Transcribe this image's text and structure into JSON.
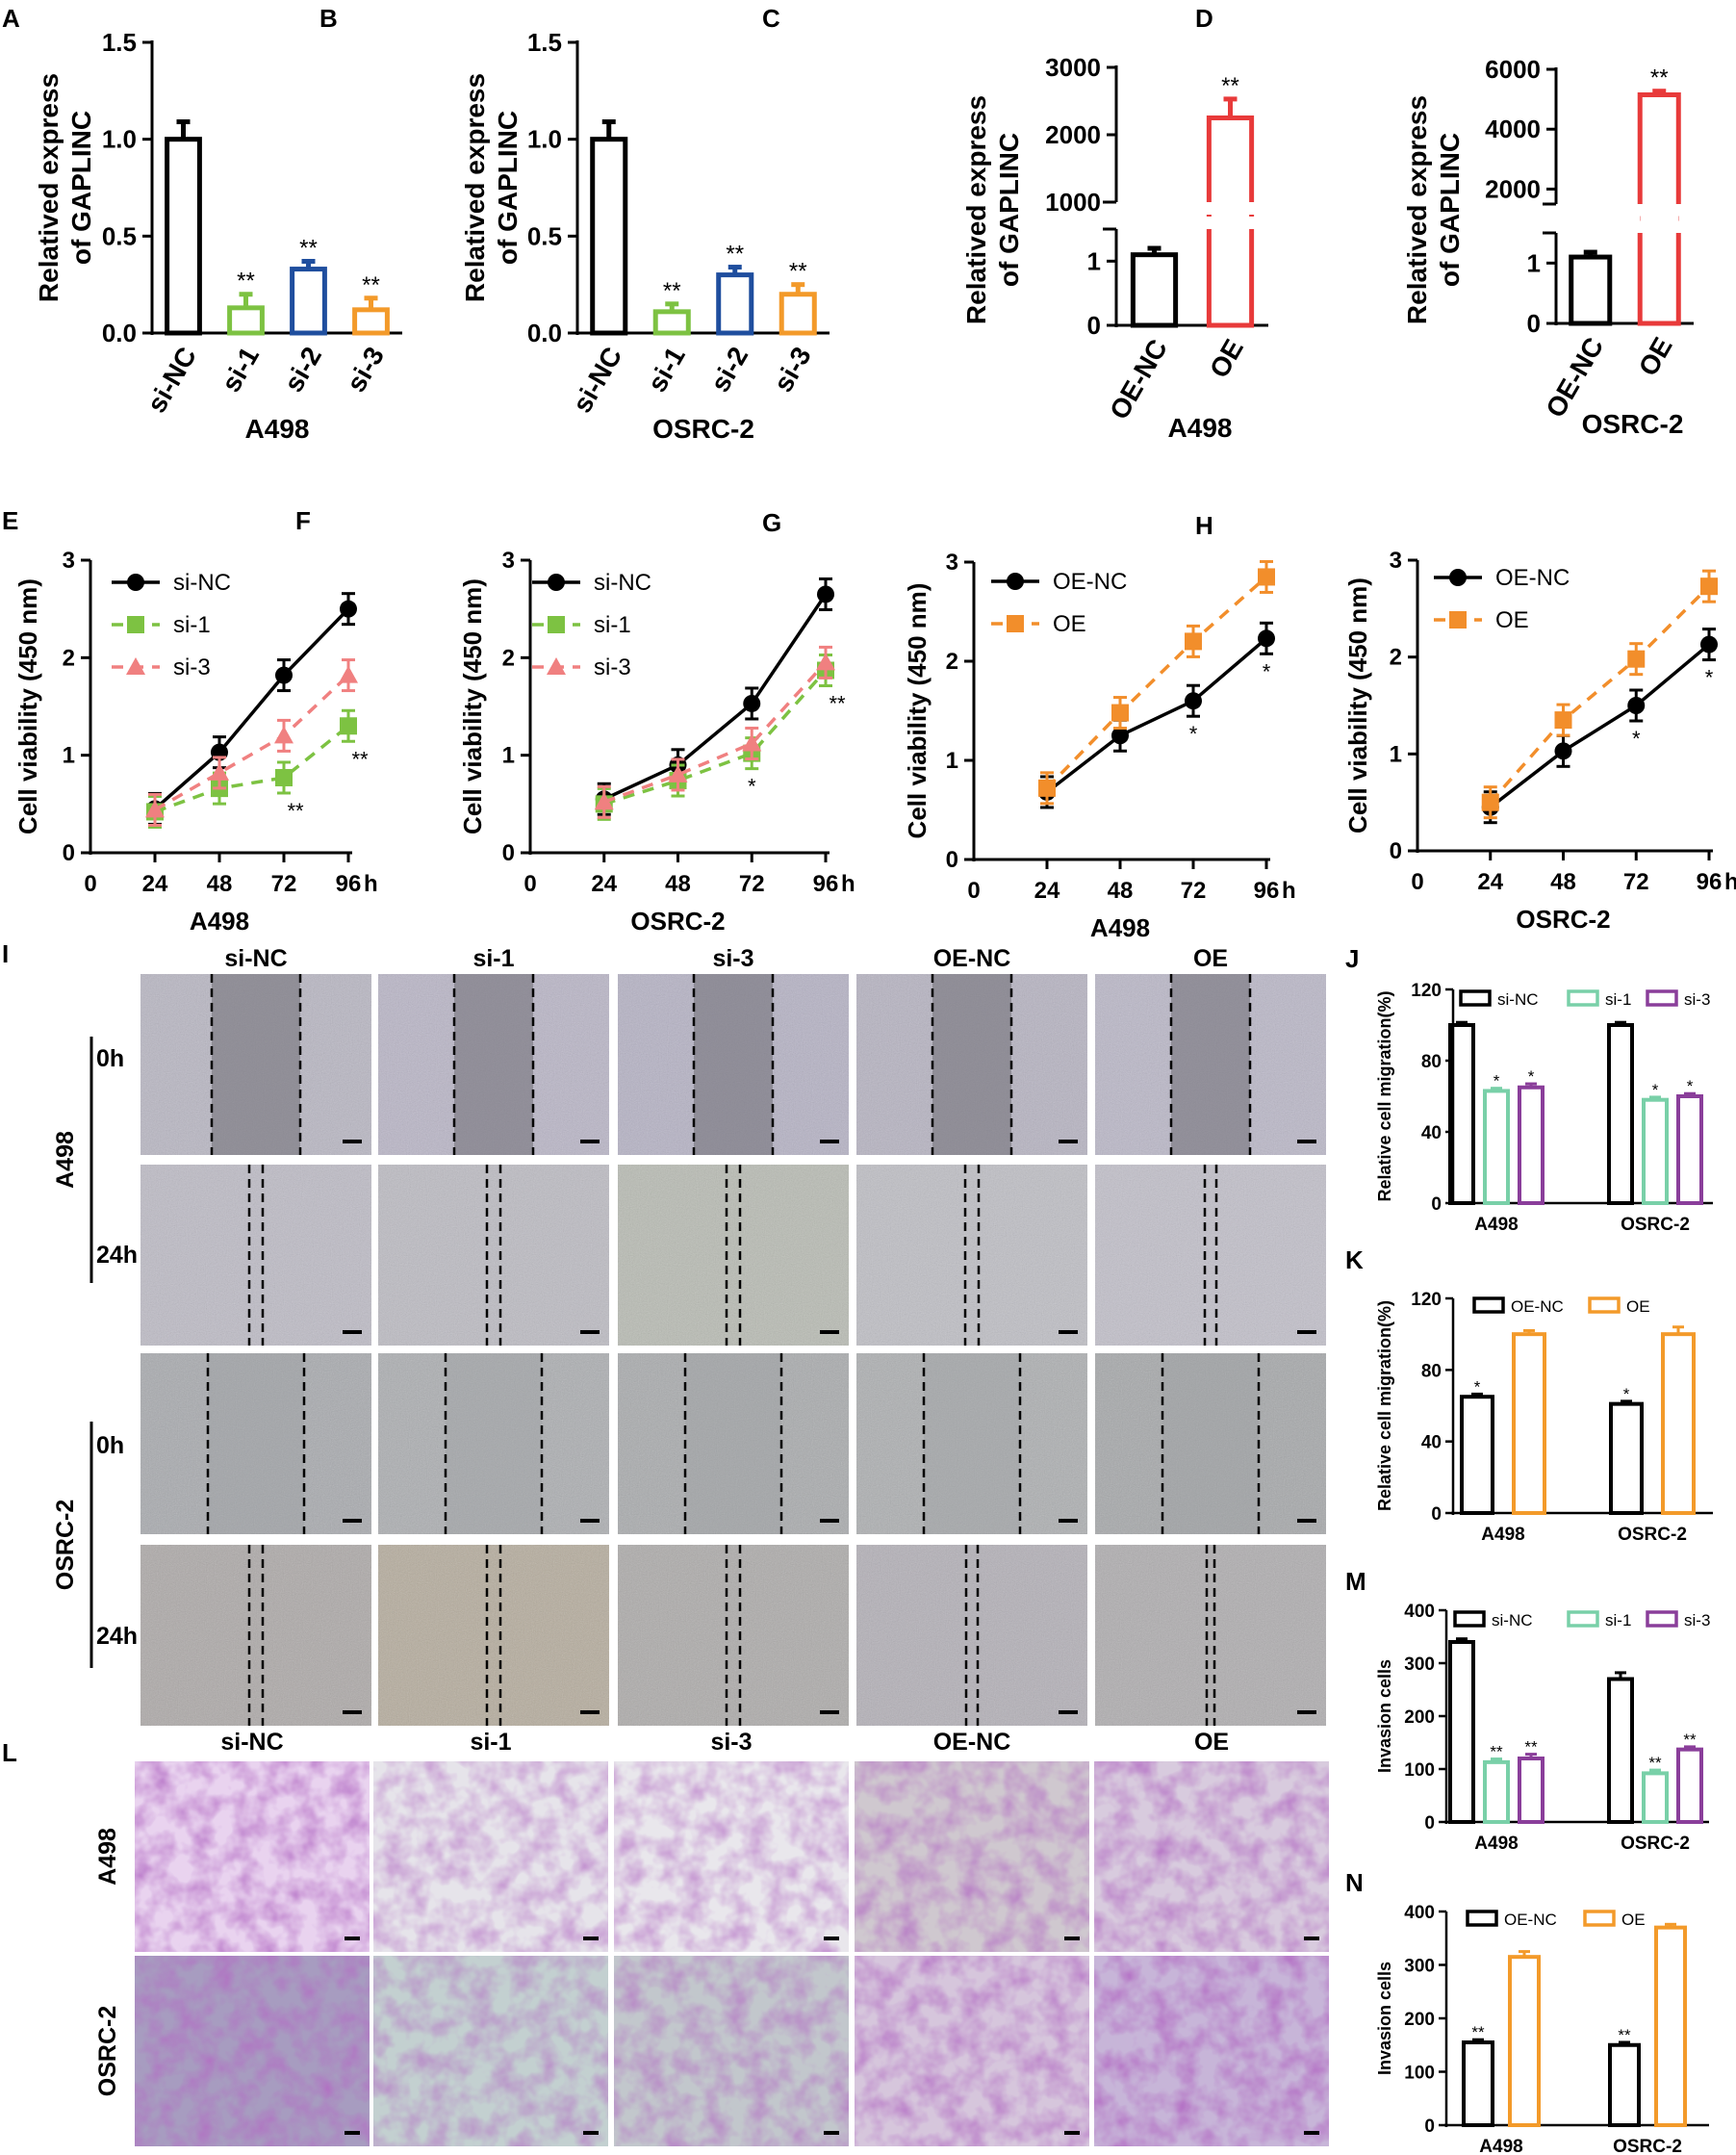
{
  "figure": {
    "colors": {
      "black": "#000000",
      "green": "#7dc242",
      "blue": "#1f4e9e",
      "orange": "#f39a2a",
      "red": "#e83a3a",
      "pink": "#f08080",
      "teal": "#79d0a8",
      "purple": "#8a3e9a",
      "orangeLine": "#f28e2b"
    }
  },
  "chart_data": [
    {
      "panel": "A",
      "type": "bar",
      "xlabel": "A498",
      "ylabel_lines": [
        "Relatived express",
        "of GAPLINC"
      ],
      "ylim": [
        0,
        1.5
      ],
      "yticks": [
        "0.0",
        "0.5",
        "1.0",
        "1.5"
      ],
      "categories": [
        "si-NC",
        "si-1",
        "si-2",
        "si-3"
      ],
      "values": [
        1.0,
        0.13,
        0.33,
        0.12
      ],
      "errors": [
        0.09,
        0.07,
        0.04,
        0.06
      ],
      "sig": [
        "",
        "**",
        "**",
        "**"
      ],
      "colors": [
        "black",
        "green",
        "blue",
        "orange"
      ]
    },
    {
      "panel": "B",
      "type": "bar",
      "xlabel": "OSRC-2",
      "ylabel_lines": [
        "Relatived express",
        "of GAPLINC"
      ],
      "ylim": [
        0,
        1.5
      ],
      "yticks": [
        "0.0",
        "0.5",
        "1.0",
        "1.5"
      ],
      "categories": [
        "si-NC",
        "si-1",
        "si-2",
        "si-3"
      ],
      "values": [
        1.0,
        0.11,
        0.3,
        0.2
      ],
      "errors": [
        0.09,
        0.04,
        0.04,
        0.05
      ],
      "sig": [
        "",
        "**",
        "**",
        "**"
      ],
      "colors": [
        "black",
        "green",
        "blue",
        "orange"
      ]
    },
    {
      "panel": "C",
      "type": "bar",
      "broken_axis": true,
      "xlabel": "A498",
      "ylabel_lines": [
        "Relatived express",
        "of GAPLINC"
      ],
      "yticks_low": [
        "0",
        "1"
      ],
      "yticks_high": [
        "1000",
        "2000",
        "3000"
      ],
      "categories": [
        "OE-NC",
        "OE"
      ],
      "values": [
        1.1,
        2250
      ],
      "errors": [
        0.1,
        280
      ],
      "sig": [
        "",
        "**"
      ],
      "colors": [
        "black",
        "red"
      ]
    },
    {
      "panel": "D",
      "type": "bar",
      "broken_axis": true,
      "xlabel": "OSRC-2",
      "ylabel_lines": [
        "Relatived express",
        "of GAPLINC"
      ],
      "yticks_low": [
        "0",
        "1"
      ],
      "yticks_high": [
        "2000",
        "4000",
        "6000"
      ],
      "categories": [
        "OE-NC",
        "OE"
      ],
      "values": [
        1.1,
        5150
      ],
      "errors": [
        0.08,
        120
      ],
      "sig": [
        "",
        "**"
      ],
      "colors": [
        "black",
        "red"
      ]
    },
    {
      "panel": "E",
      "type": "line",
      "xlabel": "A498",
      "ylabel": "Cell viability (450 nm)",
      "x": [
        24,
        48,
        72,
        96
      ],
      "xticks": [
        "0",
        "24",
        "48",
        "72",
        "96"
      ],
      "xunit": "h",
      "ylim": [
        0,
        3
      ],
      "yticks": [
        "0",
        "1",
        "2",
        "3"
      ],
      "series": [
        {
          "name": "si-NC",
          "values": [
            0.45,
            1.03,
            1.82,
            2.5
          ],
          "color": "black",
          "dashed": false,
          "marker": "circle",
          "sig": [
            "",
            "",
            "",
            ""
          ]
        },
        {
          "name": "si-1",
          "values": [
            0.42,
            0.66,
            0.77,
            1.3
          ],
          "color": "green",
          "dashed": true,
          "marker": "square",
          "sig": [
            "",
            "",
            "**",
            "**"
          ]
        },
        {
          "name": "si-3",
          "values": [
            0.44,
            0.82,
            1.2,
            1.82
          ],
          "color": "pink",
          "dashed": true,
          "marker": "triangle",
          "sig": [
            "",
            "",
            "",
            ""
          ]
        }
      ]
    },
    {
      "panel": "F",
      "type": "line",
      "xlabel": "OSRC-2",
      "ylabel": "Cell viability (450 nm)",
      "x": [
        24,
        48,
        72,
        96
      ],
      "xticks": [
        "0",
        "24",
        "48",
        "72",
        "96"
      ],
      "xunit": "h",
      "ylim": [
        0,
        3
      ],
      "yticks": [
        "0",
        "1",
        "2",
        "3"
      ],
      "series": [
        {
          "name": "si-NC",
          "values": [
            0.55,
            0.9,
            1.53,
            2.65
          ],
          "color": "black",
          "dashed": false,
          "marker": "circle",
          "sig": [
            "",
            "",
            "",
            ""
          ]
        },
        {
          "name": "si-1",
          "values": [
            0.5,
            0.74,
            1.02,
            1.87
          ],
          "color": "green",
          "dashed": true,
          "marker": "square",
          "sig": [
            "",
            "",
            "*",
            "**"
          ]
        },
        {
          "name": "si-3",
          "values": [
            0.52,
            0.8,
            1.12,
            1.95
          ],
          "color": "pink",
          "dashed": true,
          "marker": "triangle",
          "sig": [
            "",
            "",
            "",
            ""
          ]
        }
      ]
    },
    {
      "panel": "G",
      "type": "line",
      "xlabel": "A498",
      "ylabel": "Cell viability (450 nm)",
      "x": [
        24,
        48,
        72,
        96
      ],
      "xticks": [
        "0",
        "24",
        "48",
        "72",
        "96"
      ],
      "xunit": "h",
      "ylim": [
        0,
        3
      ],
      "yticks": [
        "0",
        "1",
        "2",
        "3"
      ],
      "series": [
        {
          "name": "OE-NC",
          "values": [
            0.68,
            1.25,
            1.6,
            2.23
          ],
          "color": "black",
          "dashed": false,
          "marker": "circle",
          "sig": [
            "",
            "",
            "*",
            "*"
          ]
        },
        {
          "name": "OE",
          "values": [
            0.72,
            1.48,
            2.2,
            2.85
          ],
          "color": "orangeLine",
          "dashed": true,
          "marker": "square",
          "sig": [
            "",
            "",
            "",
            ""
          ]
        }
      ]
    },
    {
      "panel": "H",
      "type": "line",
      "xlabel": "OSRC-2",
      "ylabel": "Cell viability (450 nm)",
      "x": [
        24,
        48,
        72,
        96
      ],
      "xticks": [
        "0",
        "24",
        "48",
        "72",
        "96"
      ],
      "xunit": "h",
      "ylim": [
        0,
        3
      ],
      "yticks": [
        "0",
        "1",
        "2",
        "3"
      ],
      "series": [
        {
          "name": "OE-NC",
          "values": [
            0.45,
            1.03,
            1.5,
            2.13
          ],
          "color": "black",
          "dashed": false,
          "marker": "circle",
          "sig": [
            "",
            "",
            "*",
            "*"
          ]
        },
        {
          "name": "OE",
          "values": [
            0.5,
            1.35,
            1.98,
            2.73
          ],
          "color": "orangeLine",
          "dashed": true,
          "marker": "square",
          "sig": [
            "",
            "",
            "",
            ""
          ]
        }
      ]
    },
    {
      "panel": "J",
      "type": "bar",
      "grouped": true,
      "ylabel": "Relative cell migration(%)",
      "ylim": [
        0,
        120
      ],
      "yticks": [
        "0",
        "40",
        "80",
        "120"
      ],
      "categories": [
        "A498",
        "OSRC-2"
      ],
      "series": [
        {
          "name": "si-NC",
          "values": [
            100,
            100
          ],
          "errors": [
            1.5,
            1.5
          ],
          "color": "black",
          "sig": [
            "",
            ""
          ]
        },
        {
          "name": "si-1",
          "values": [
            63,
            58
          ],
          "errors": [
            1.5,
            1.5
          ],
          "color": "teal",
          "sig": [
            "*",
            "*"
          ]
        },
        {
          "name": "si-3",
          "values": [
            65,
            60
          ],
          "errors": [
            2,
            1.5
          ],
          "color": "purple",
          "sig": [
            "*",
            "*"
          ]
        }
      ]
    },
    {
      "panel": "K",
      "type": "bar",
      "grouped": true,
      "ylabel": "Relative cell migration(%)",
      "ylim": [
        0,
        120
      ],
      "yticks": [
        "0",
        "40",
        "80",
        "120"
      ],
      "categories": [
        "A498",
        "OSRC-2"
      ],
      "series": [
        {
          "name": "OE-NC",
          "values": [
            65,
            61
          ],
          "errors": [
            1.5,
            1.5
          ],
          "color": "black",
          "sig": [
            "*",
            "*"
          ]
        },
        {
          "name": "OE",
          "values": [
            100,
            100
          ],
          "errors": [
            2,
            4
          ],
          "color": "orange",
          "sig": [
            "",
            ""
          ]
        }
      ]
    },
    {
      "panel": "M",
      "type": "bar",
      "grouped": true,
      "ylabel": "Invasion cells",
      "ylim": [
        0,
        400
      ],
      "yticks": [
        "0",
        "100",
        "200",
        "300",
        "400"
      ],
      "categories": [
        "A498",
        "OSRC-2"
      ],
      "series": [
        {
          "name": "si-NC",
          "values": [
            340,
            270
          ],
          "errors": [
            6,
            12
          ],
          "color": "black",
          "sig": [
            "",
            ""
          ]
        },
        {
          "name": "si-1",
          "values": [
            113,
            92
          ],
          "errors": [
            6,
            6
          ],
          "color": "teal",
          "sig": [
            "**",
            "**"
          ]
        },
        {
          "name": "si-3",
          "values": [
            120,
            137
          ],
          "errors": [
            8,
            5
          ],
          "color": "purple",
          "sig": [
            "**",
            "**"
          ]
        }
      ]
    },
    {
      "panel": "N",
      "type": "bar",
      "grouped": true,
      "ylabel": "Invasion cells",
      "ylim": [
        0,
        400
      ],
      "yticks": [
        "0",
        "100",
        "200",
        "300",
        "400"
      ],
      "categories": [
        "A498",
        "OSRC-2"
      ],
      "series": [
        {
          "name": "OE-NC",
          "values": [
            155,
            150
          ],
          "errors": [
            5,
            5
          ],
          "color": "black",
          "sig": [
            "**",
            "**"
          ]
        },
        {
          "name": "OE",
          "values": [
            315,
            370
          ],
          "errors": [
            10,
            6
          ],
          "color": "orange",
          "sig": [
            "",
            ""
          ]
        }
      ]
    }
  ],
  "wound_healing": {
    "panel": "I",
    "columns": [
      "si-NC",
      "si-1",
      "si-3",
      "OE-NC",
      "OE"
    ],
    "group_labels": [
      "A498",
      "OSRC-2"
    ],
    "time_labels": [
      "0h",
      "24h"
    ],
    "wound_open": [
      true,
      true,
      true,
      true,
      true
    ]
  },
  "transwell": {
    "panel": "L",
    "columns": [
      "si-NC",
      "si-1",
      "si-3",
      "OE-NC",
      "OE"
    ],
    "row_labels": [
      "A498",
      "OSRC-2"
    ]
  }
}
